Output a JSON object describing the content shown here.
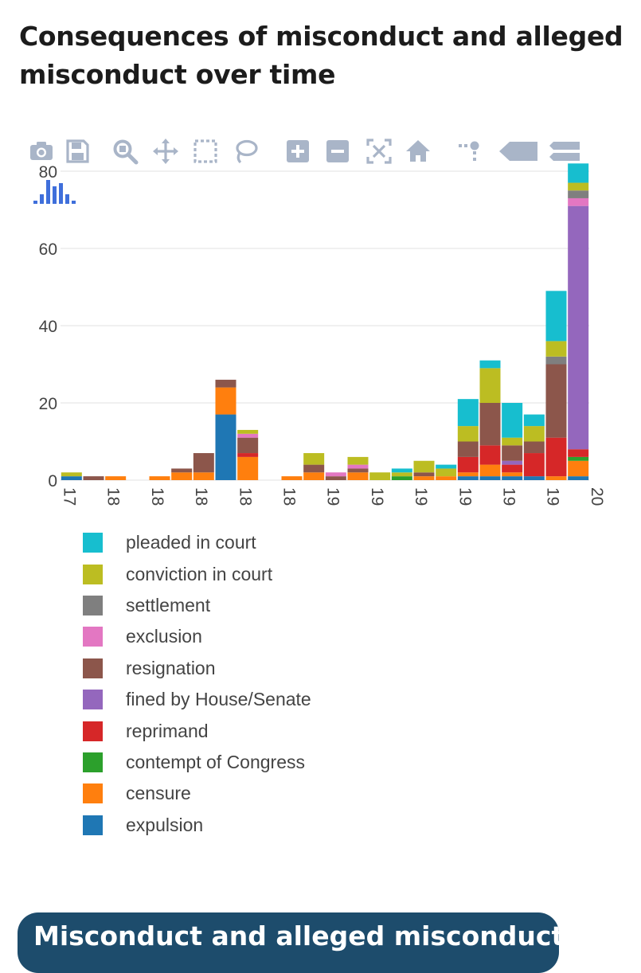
{
  "page": {
    "title": "Consequences of misconduct and alleged misconduct over time",
    "banner": "Misconduct and alleged misconduct"
  },
  "modebar": {
    "buttons": [
      "camera-icon",
      "save-icon",
      "zoom-icon",
      "pan-icon",
      "box-select-icon",
      "lasso-select-icon",
      "zoom-in-icon",
      "zoom-out-icon",
      "autoscale-icon",
      "reset-axes-icon",
      "spike-lines-icon",
      "hover-closest-icon",
      "hover-compare-icon"
    ],
    "color": "#a9b5c8"
  },
  "chart_data": {
    "type": "bar",
    "stacked": true,
    "ylim": [
      0,
      80
    ],
    "yticks": [
      0,
      20,
      40,
      60,
      80
    ],
    "xtick_labels": [
      "17",
      "18",
      "18",
      "18",
      "18",
      "18",
      "19",
      "19",
      "19",
      "19",
      "19",
      "19",
      "20"
    ],
    "bins": 24,
    "legend_position": "below",
    "series": [
      {
        "name": "expulsion",
        "color": "#1f77b4",
        "values": [
          1,
          0,
          0,
          0,
          0,
          0,
          0,
          17,
          0,
          0,
          0,
          0,
          0,
          0,
          0,
          0,
          0,
          0,
          1,
          1,
          1,
          1,
          0,
          1
        ]
      },
      {
        "name": "censure",
        "color": "#ff7f0e",
        "values": [
          0,
          0,
          1,
          0,
          1,
          2,
          2,
          7,
          6,
          0,
          1,
          2,
          0,
          2,
          0,
          0,
          1,
          1,
          1,
          3,
          1,
          0,
          1,
          4
        ]
      },
      {
        "name": "contempt of Congress",
        "color": "#2ca02c",
        "values": [
          0,
          0,
          0,
          0,
          0,
          0,
          0,
          0,
          0,
          0,
          0,
          0,
          0,
          0,
          0,
          1,
          0,
          0,
          0,
          0,
          0,
          0,
          0,
          1
        ]
      },
      {
        "name": "reprimand",
        "color": "#d62728",
        "values": [
          0,
          0,
          0,
          0,
          0,
          0,
          0,
          0,
          1,
          0,
          0,
          0,
          0,
          0,
          0,
          0,
          0,
          0,
          4,
          5,
          2,
          6,
          10,
          2
        ]
      },
      {
        "name": "fined by House/Senate",
        "color": "#9467bd",
        "values": [
          0,
          0,
          0,
          0,
          0,
          0,
          0,
          0,
          0,
          0,
          0,
          0,
          0,
          0,
          0,
          0,
          0,
          0,
          0,
          0,
          1,
          0,
          0,
          63
        ]
      },
      {
        "name": "resignation",
        "color": "#8c564b",
        "values": [
          0,
          1,
          0,
          0,
          0,
          1,
          5,
          2,
          4,
          0,
          0,
          2,
          1,
          1,
          0,
          0,
          1,
          0,
          4,
          11,
          4,
          3,
          19,
          0
        ]
      },
      {
        "name": "exclusion",
        "color": "#e377c2",
        "values": [
          0,
          0,
          0,
          0,
          0,
          0,
          0,
          0,
          1,
          0,
          0,
          0,
          1,
          1,
          0,
          0,
          0,
          0,
          0,
          0,
          0,
          0,
          0,
          2
        ]
      },
      {
        "name": "settlement",
        "color": "#7f7f7f",
        "values": [
          0,
          0,
          0,
          0,
          0,
          0,
          0,
          0,
          0,
          0,
          0,
          0,
          0,
          0,
          0,
          0,
          0,
          0,
          0,
          0,
          0,
          0,
          2,
          2
        ]
      },
      {
        "name": "conviction in court",
        "color": "#bcbd22",
        "values": [
          1,
          0,
          0,
          0,
          0,
          0,
          0,
          0,
          1,
          0,
          0,
          3,
          0,
          2,
          2,
          1,
          3,
          2,
          4,
          9,
          2,
          4,
          4,
          2
        ]
      },
      {
        "name": "pleaded in court",
        "color": "#17becf",
        "values": [
          0,
          0,
          0,
          0,
          0,
          0,
          0,
          0,
          0,
          0,
          0,
          0,
          0,
          0,
          0,
          1,
          0,
          1,
          7,
          2,
          9,
          3,
          13,
          5
        ]
      }
    ]
  }
}
